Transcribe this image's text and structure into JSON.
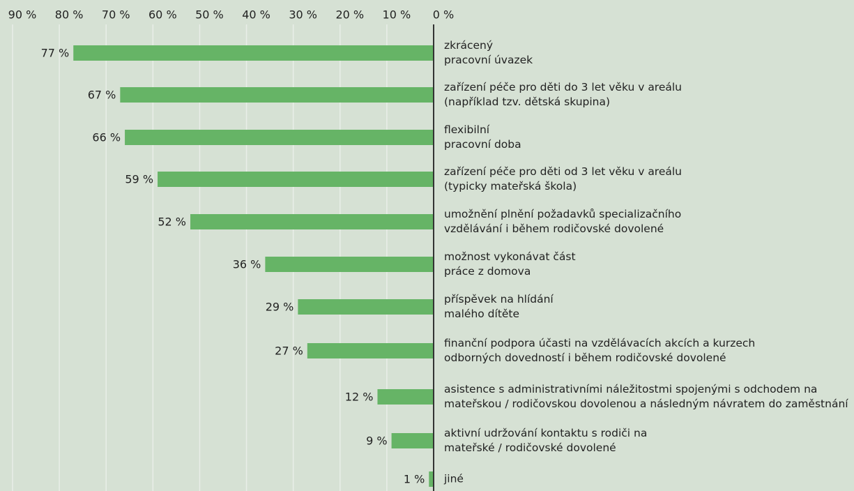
{
  "chart_data": {
    "type": "bar",
    "orientation": "horizontal",
    "reversed": true,
    "categories": [
      "zkrácený\npracovní úvazek",
      "zařízení péče pro děti do 3 let věku v areálu\n(například tzv. dětská skupina)",
      "flexibilní\npracovní doba",
      "zařízení péče pro děti od 3 let věku v areálu\n(typicky mateřská škola)",
      "umožnění plnění požadavků specializačního\nvzdělávání i během rodičovské dovolené",
      "možnost vykonávat část\npráce z domova",
      "příspěvek na hlídání\nmalého dítěte",
      "finanční podpora účasti na vzdělávacích akcích a kurzech\nodborných dovedností i během rodičovské dovolené",
      "asistence s administrativními náležitostmi spojenými s odchodem na\nmateřskou / rodičovskou dovolenou a následným návratem do zaměstnání",
      "aktivní udržování kontaktu s rodiči na\nmateřské / rodičovské dovolené",
      "jiné"
    ],
    "values": [
      77,
      67,
      66,
      59,
      52,
      36,
      29,
      27,
      12,
      9,
      1
    ],
    "value_labels": [
      "77 %",
      "67 %",
      "66 %",
      "59 %",
      "52 %",
      "36 %",
      "29 %",
      "27 %",
      "12 %",
      "9 %",
      "1 %"
    ],
    "color": "#66b466",
    "xlim": [
      0,
      90
    ],
    "xticks": [
      {
        "value": 90,
        "label": "90 %"
      },
      {
        "value": 80,
        "label": "80 %"
      },
      {
        "value": 70,
        "label": "70 %"
      },
      {
        "value": 60,
        "label": "60 %"
      },
      {
        "value": 50,
        "label": "50 %"
      },
      {
        "value": 40,
        "label": "40 %"
      },
      {
        "value": 30,
        "label": "30 %"
      },
      {
        "value": 20,
        "label": "20 %"
      },
      {
        "value": 10,
        "label": "10 %"
      },
      {
        "value": 0,
        "label": "0 %"
      }
    ],
    "grid": true
  }
}
